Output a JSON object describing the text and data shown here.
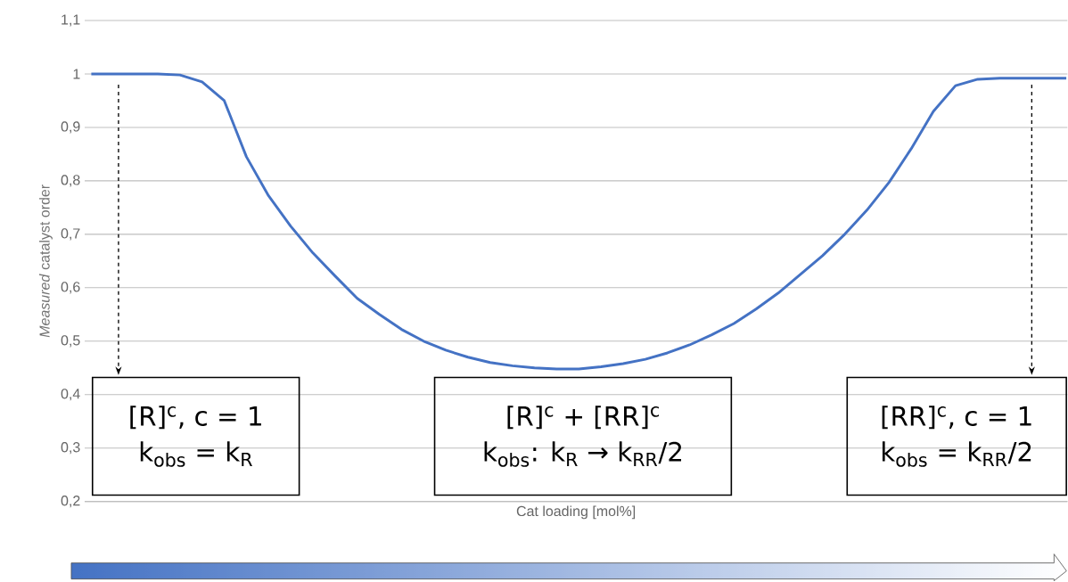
{
  "chart_data": {
    "type": "line",
    "xlabel": "Cat loading [mol%]",
    "ylabel": "*Measured* catalyst order",
    "categories": [
      null,
      null,
      null,
      null,
      null,
      null,
      null,
      null,
      null,
      null,
      null,
      null,
      null,
      null,
      null,
      null,
      null,
      null,
      null,
      null,
      null,
      null,
      null,
      null,
      null,
      null,
      null,
      null,
      null,
      null,
      null,
      null,
      null,
      null,
      null,
      null,
      null,
      null,
      null,
      null,
      null,
      null,
      null,
      null,
      null
    ],
    "values": [
      1.0,
      1.0,
      1.0,
      1.0,
      0.998,
      0.985,
      0.95,
      0.845,
      0.772,
      0.715,
      0.665,
      0.622,
      0.58,
      0.55,
      0.522,
      0.5,
      0.483,
      0.47,
      0.46,
      0.454,
      0.45,
      0.448,
      0.448,
      0.452,
      0.458,
      0.466,
      0.478,
      0.493,
      0.512,
      0.533,
      0.56,
      0.59,
      0.625,
      0.66,
      0.7,
      0.745,
      0.797,
      0.86,
      0.93,
      0.978,
      0.99,
      0.992,
      0.992,
      0.992,
      0.992
    ],
    "color": "#4472c4",
    "ylim": [
      0.2,
      1.1
    ],
    "yticks": [
      {
        "value": 0.2,
        "label": "0,2"
      },
      {
        "value": 0.3,
        "label": "0,3"
      },
      {
        "value": 0.4,
        "label": "0,4"
      },
      {
        "value": 0.5,
        "label": "0,5"
      },
      {
        "value": 0.6,
        "label": "0,6"
      },
      {
        "value": 0.7,
        "label": "0,7"
      },
      {
        "value": 0.8,
        "label": "0,8"
      },
      {
        "value": 0.9,
        "label": "0,9"
      },
      {
        "value": 1,
        "label": "1"
      },
      {
        "value": 1.1,
        "label": "1,1"
      }
    ],
    "grid": "y",
    "annotations": [
      "[R]$^{c}$, c = 1",
      "k$_{obs}$ = k$_{R}$",
      "[R]$^{c}$ + [RR]$^{c}$",
      "k$_{obs}$: k$_{R}$ → k$_{RR}$/2",
      "[RR]$^{c}$, c = 1",
      "k$_{obs}$ = k$_{RR}$/2"
    ]
  }
}
